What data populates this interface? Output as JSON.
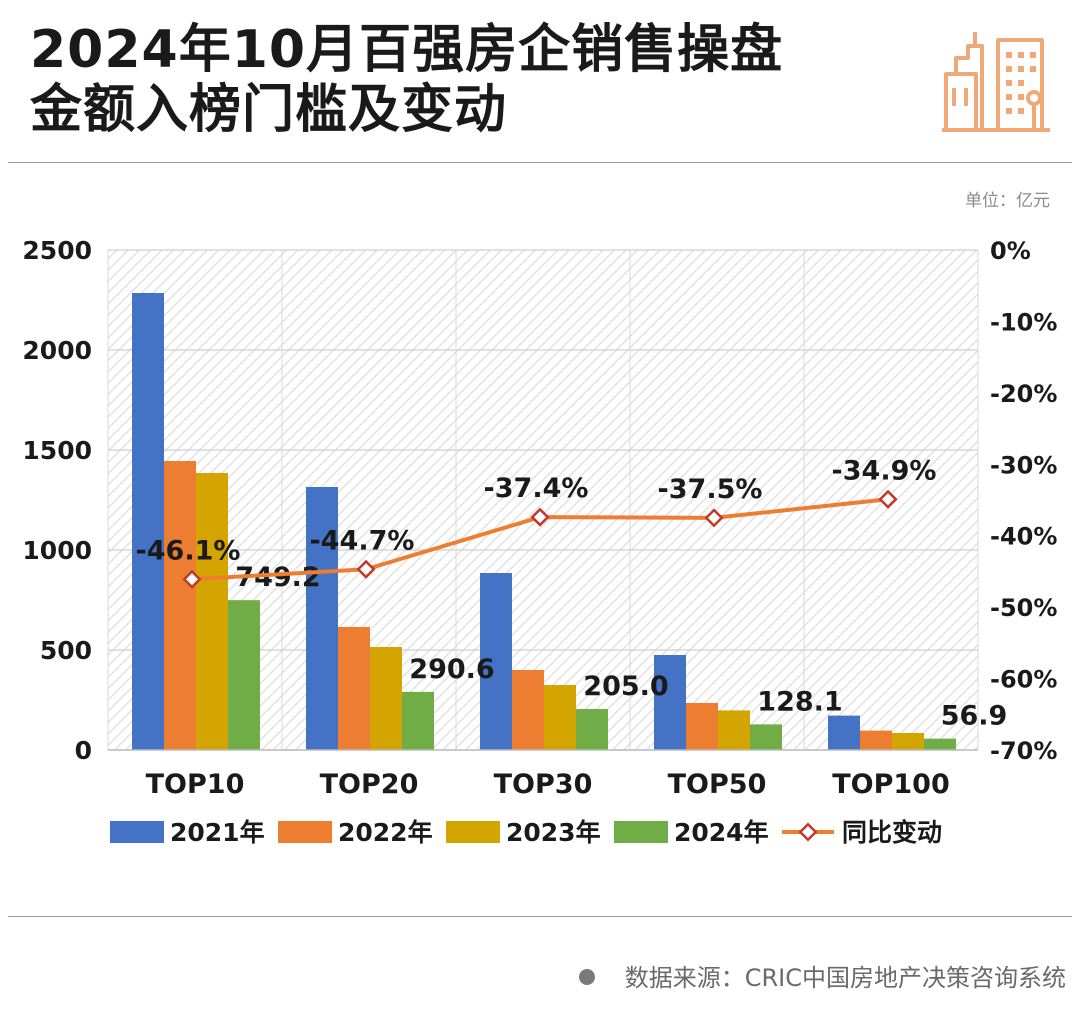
{
  "header": {
    "title_line1": "2024年10月百强房企销售操盘",
    "title_line2": "金额入榜门槛及变动",
    "logo_icon": "city-buildings-icon"
  },
  "unit_label": "单位：亿元",
  "source": "数据来源：CRIC中国房地产决策咨询系统",
  "colors": {
    "series_2021": "#4472c4",
    "series_2022": "#ed7d31",
    "series_2023": "#d4a400",
    "series_2024": "#70ad47",
    "line": "#ed7d31",
    "marker": "#c0392b",
    "logo": "#f0a878"
  },
  "chart_data": {
    "type": "bar",
    "categories": [
      "TOP10",
      "TOP20",
      "TOP30",
      "TOP50",
      "TOP100"
    ],
    "series": [
      {
        "name": "2021年",
        "values": [
          2285,
          1315,
          885,
          475,
          172
        ]
      },
      {
        "name": "2022年",
        "values": [
          1445,
          615,
          400,
          235,
          97
        ]
      },
      {
        "name": "2023年",
        "values": [
          1385,
          515,
          325,
          198,
          85
        ]
      },
      {
        "name": "2024年",
        "values": [
          749.2,
          290.6,
          205.0,
          128.1,
          56.9
        ],
        "labels": [
          "749.2",
          "290.6",
          "205.0",
          "128.1",
          "56.9"
        ]
      }
    ],
    "line_series": {
      "name": "同比变动",
      "axis": "right",
      "values": [
        -46.1,
        -44.7,
        -37.4,
        -37.5,
        -34.9
      ],
      "labels": [
        "-46.1%",
        "-44.7%",
        "-37.4%",
        "-37.5%",
        "-34.9%"
      ]
    },
    "ylim": [
      0,
      2500
    ],
    "yticks": [
      "0",
      "500",
      "1000",
      "1500",
      "2000",
      "2500"
    ],
    "y2lim": [
      -70,
      0
    ],
    "y2ticks": [
      "0%",
      "-10%",
      "-20%",
      "-30%",
      "-40%",
      "-50%",
      "-60%",
      "-70%"
    ],
    "grid": true,
    "legend_position": "bottom"
  }
}
